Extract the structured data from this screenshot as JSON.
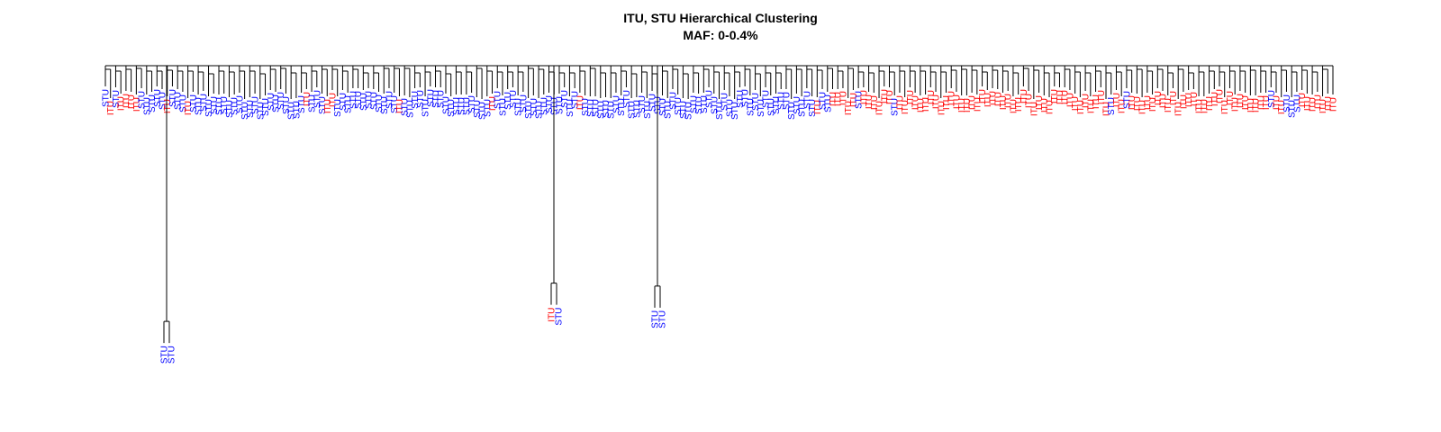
{
  "chart_data": {
    "type": "dendrogram",
    "title": "ITU, STU Hierarchical Clustering",
    "subtitle": "MAF: 0-0.4%",
    "groups": [
      "ITU",
      "STU"
    ],
    "colors": {
      "ITU": "#ff0000",
      "STU": "#0000ff",
      "branch": "#000000"
    },
    "leaves": [
      "STU",
      "ITU",
      "STU",
      "ITU",
      "ITU",
      "ITU",
      "ITU",
      "STU",
      "STU",
      "STU",
      "STU",
      "STU",
      "ITU",
      "STU",
      "STU",
      "STU",
      "ITU",
      "STU",
      "STU",
      "STU",
      "STU",
      "STU",
      "STU",
      "STU",
      "STU",
      "STU",
      "STU",
      "STU",
      "STU",
      "STU",
      "STU",
      "STU",
      "STU",
      "STU",
      "STU",
      "STU",
      "STU",
      "STU",
      "STU",
      "ITU",
      "STU",
      "STU",
      "STU",
      "ITU",
      "ITU",
      "STU",
      "STU",
      "STU",
      "STU",
      "STU",
      "STU",
      "STU",
      "STU",
      "STU",
      "STU",
      "STU",
      "STU",
      "ITU",
      "STU",
      "STU",
      "STU",
      "STU",
      "STU",
      "STU",
      "STU",
      "STU",
      "STU",
      "STU",
      "STU",
      "STU",
      "STU",
      "STU",
      "STU",
      "STU",
      "STU",
      "ITU",
      "STU",
      "STU",
      "STU",
      "STU",
      "STU",
      "STU",
      "STU",
      "STU",
      "STU",
      "STU",
      "STU",
      "STU",
      "STU",
      "STU",
      "STU",
      "STU",
      "ITU",
      "STU",
      "STU",
      "STU",
      "STU",
      "STU",
      "STU",
      "STU",
      "STU",
      "STU",
      "STU",
      "STU",
      "STU",
      "STU",
      "STU",
      "STU",
      "STU",
      "STU",
      "STU",
      "STU",
      "STU",
      "STU",
      "STU",
      "STU",
      "STU",
      "STU",
      "STU",
      "STU",
      "STU",
      "STU",
      "STU",
      "STU",
      "STU",
      "STU",
      "STU",
      "STU",
      "STU",
      "STU",
      "STU",
      "STU",
      "STU",
      "STU",
      "STU",
      "STU",
      "STU",
      "STU",
      "ITU",
      "STU",
      "STU",
      "ITU",
      "ITU",
      "ITU",
      "ITU",
      "ITU",
      "STU",
      "ITU",
      "ITU",
      "ITU",
      "ITU",
      "ITU",
      "ITU",
      "STU",
      "ITU",
      "ITU",
      "ITU",
      "ITU",
      "ITU",
      "ITU",
      "ITU",
      "ITU",
      "ITU",
      "ITU",
      "ITU",
      "ITU",
      "ITU",
      "ITU",
      "ITU",
      "ITU",
      "ITU",
      "ITU",
      "ITU",
      "ITU",
      "ITU",
      "ITU",
      "ITU",
      "ITU",
      "ITU",
      "ITU",
      "ITU",
      "ITU",
      "ITU",
      "ITU",
      "ITU",
      "ITU",
      "ITU",
      "ITU",
      "ITU",
      "ITU",
      "ITU",
      "ITU",
      "ITU",
      "ITU",
      "ITU",
      "STU",
      "ITU",
      "ITU",
      "STU",
      "ITU",
      "ITU",
      "ITU",
      "ITU",
      "ITU",
      "ITU",
      "ITU",
      "ITU",
      "ITU",
      "ITU",
      "ITU",
      "ITU",
      "ITU",
      "ITU",
      "ITU",
      "ITU",
      "ITU",
      "ITU",
      "ITU",
      "ITU",
      "ITU",
      "ITU",
      "ITU",
      "ITU",
      "ITU",
      "ITU",
      "ITU",
      "STU",
      "ITU",
      "ITU",
      "STU",
      "STU",
      "STU",
      "ITU",
      "ITU",
      "ITU",
      "ITU",
      "ITU",
      "ITU",
      "ITU"
    ],
    "outliers": [
      {
        "labels": [
          "STU",
          "STU"
        ],
        "depth": 0.93
      },
      {
        "labels": [
          "ITU",
          "STU"
        ],
        "depth": 0.8
      },
      {
        "labels": [
          "STU",
          "STU"
        ],
        "depth": 0.81
      }
    ],
    "grid": false,
    "legend": "none"
  }
}
